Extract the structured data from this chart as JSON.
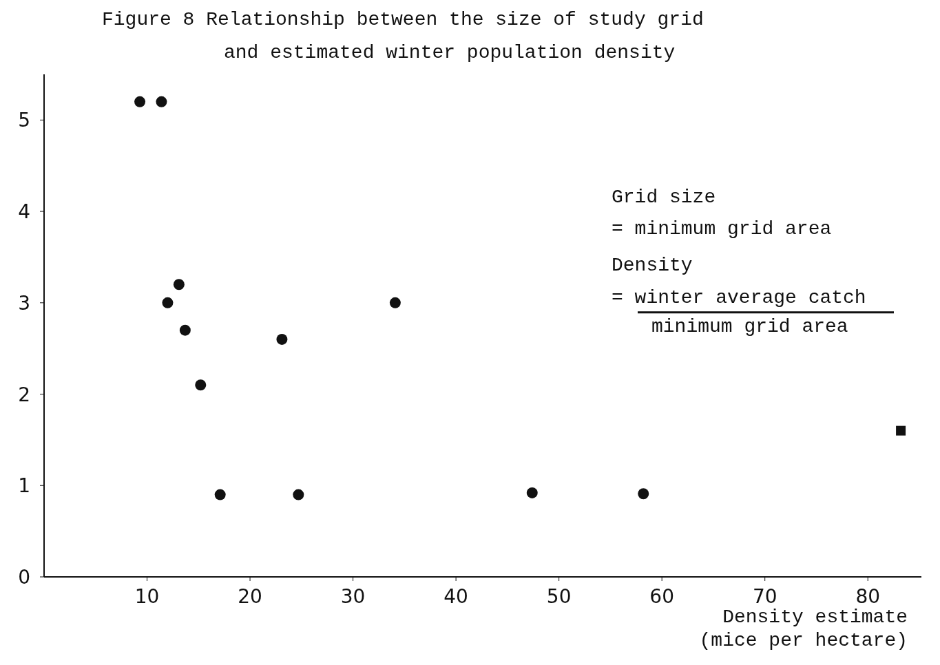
{
  "chart_data": {
    "type": "scatter",
    "title": "Figure 8 Relationship between the size of study grid and estimated winter population density",
    "xlabel": "Density estimate (mice per hectare)",
    "xlim": [
      0,
      85.2
    ],
    "ylim": [
      0,
      5.5
    ],
    "xticks": [
      10,
      20,
      30,
      40,
      50,
      60,
      70,
      80
    ],
    "yticks": [
      0,
      1,
      2,
      3,
      4,
      5
    ],
    "grid": false,
    "marker": "circle",
    "series": [
      {
        "color": "#111111",
        "x": [
          9.3,
          11.4,
          13.1,
          12.0,
          13.7,
          15.2,
          17.1,
          23.1,
          24.7,
          34.1,
          47.4,
          58.2
        ],
        "values": [
          5.2,
          5.2,
          3.2,
          3.0,
          2.7,
          2.1,
          0.9,
          2.6,
          0.9,
          3.0,
          0.92,
          0.91
        ]
      },
      {
        "color": "#111111",
        "marker": "square",
        "x": [
          83.2
        ],
        "values": [
          1.6
        ]
      }
    ],
    "annotations": [
      "Grid size",
      "= minimum grid area",
      "Density",
      "= winter average catch",
      "minimum grid area"
    ]
  }
}
